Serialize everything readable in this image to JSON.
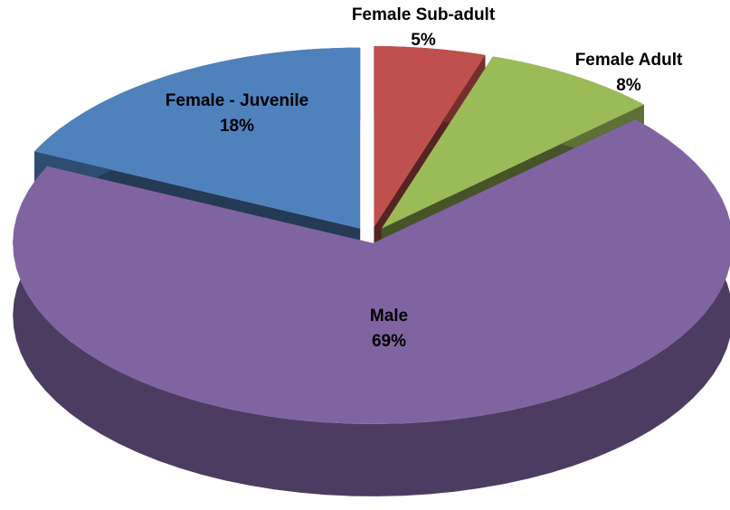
{
  "chart_data": {
    "type": "pie",
    "categories": [
      "Female Sub-adult",
      "Female Adult",
      "Male",
      "Female - Juvenile"
    ],
    "values": [
      5,
      8,
      69,
      18
    ],
    "value_labels": [
      "5%",
      "8%",
      "69%",
      "18%"
    ],
    "colors": [
      "#c0504d",
      "#9bbb59",
      "#8064a2",
      "#4f81bd"
    ]
  }
}
